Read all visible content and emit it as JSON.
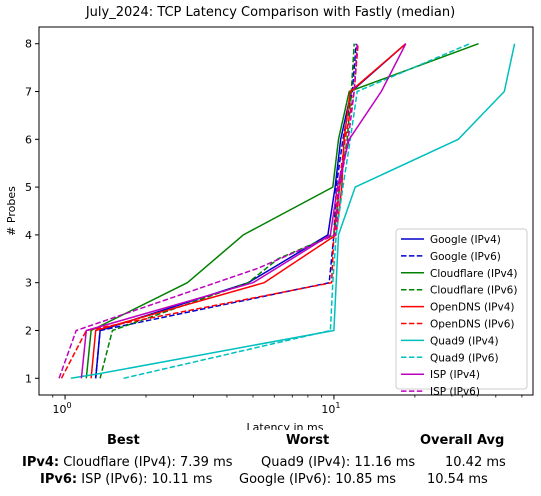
{
  "chart_data": {
    "type": "line",
    "title": "July_2024: TCP Latency Comparison with Fastly (median)",
    "xlabel": "Latency in ms",
    "ylabel": "# Probes",
    "xscale": "log",
    "xlim": [
      0.8,
      55
    ],
    "ylim": [
      0.65,
      8.35
    ],
    "xticks": [
      {
        "value": 1,
        "label": "10^0"
      },
      {
        "value": 10,
        "label": "10^1"
      }
    ],
    "yticks": [
      1,
      2,
      3,
      4,
      5,
      6,
      7,
      8
    ],
    "grid": false,
    "legend_position": "lower right",
    "series": [
      {
        "name": "Google (IPv4)",
        "color": "#0000cc",
        "style": "solid",
        "points": [
          [
            1.3,
            1
          ],
          [
            1.35,
            2
          ],
          [
            4.8,
            3
          ],
          [
            9.5,
            4
          ],
          [
            10.1,
            5
          ],
          [
            10.6,
            6
          ],
          [
            11.6,
            7
          ],
          [
            18.5,
            8
          ]
        ]
      },
      {
        "name": "Google (IPv6)",
        "color": "#0000cc",
        "style": "dashed",
        "points": [
          [
            1.3,
            1
          ],
          [
            1.35,
            2
          ],
          [
            9.6,
            3
          ],
          [
            10.0,
            4
          ],
          [
            10.2,
            5
          ],
          [
            10.8,
            6
          ],
          [
            11.7,
            7
          ],
          [
            12.1,
            8
          ]
        ]
      },
      {
        "name": "Cloudflare (IPv4)",
        "color": "#008000",
        "style": "solid",
        "points": [
          [
            1.2,
            1
          ],
          [
            1.25,
            2
          ],
          [
            2.85,
            3
          ],
          [
            4.6,
            4
          ],
          [
            9.9,
            5
          ],
          [
            10.4,
            6
          ],
          [
            11.4,
            7
          ],
          [
            34.5,
            8
          ]
        ]
      },
      {
        "name": "Cloudflare (IPv6)",
        "color": "#008000",
        "style": "dashed",
        "points": [
          [
            1.35,
            1
          ],
          [
            1.5,
            2
          ],
          [
            4.8,
            3
          ],
          [
            6.2,
            3.5
          ],
          [
            10.0,
            4
          ],
          [
            10.5,
            5
          ],
          [
            11.2,
            6
          ],
          [
            11.6,
            7
          ],
          [
            11.9,
            8
          ]
        ]
      },
      {
        "name": "OpenDNS (IPv4)",
        "color": "#ff0000",
        "style": "solid",
        "points": [
          [
            1.25,
            1
          ],
          [
            1.3,
            2
          ],
          [
            5.5,
            3
          ],
          [
            10.2,
            4
          ],
          [
            10.7,
            5
          ],
          [
            10.9,
            6
          ],
          [
            11.5,
            7
          ],
          [
            18.5,
            8
          ]
        ]
      },
      {
        "name": "OpenDNS (IPv6)",
        "color": "#ff0000",
        "style": "dashed",
        "points": [
          [
            0.97,
            1
          ],
          [
            1.2,
            2
          ],
          [
            9.8,
            3
          ],
          [
            10.0,
            4
          ],
          [
            10.4,
            5
          ],
          [
            11.0,
            6
          ],
          [
            11.9,
            7
          ],
          [
            12.3,
            8
          ]
        ]
      },
      {
        "name": "Quad9 (IPv4)",
        "color": "#00bfbf",
        "style": "solid",
        "points": [
          [
            1.05,
            1
          ],
          [
            1.35,
            1.1
          ],
          [
            10.0,
            2
          ],
          [
            10.2,
            3
          ],
          [
            10.4,
            4
          ],
          [
            12.0,
            5
          ],
          [
            29.0,
            6
          ],
          [
            43.0,
            7
          ],
          [
            47.0,
            8
          ]
        ]
      },
      {
        "name": "Quad9 (IPv6)",
        "color": "#00bfbf",
        "style": "dashed",
        "points": [
          [
            1.65,
            1
          ],
          [
            9.7,
            2
          ],
          [
            9.9,
            3
          ],
          [
            10.2,
            4
          ],
          [
            10.8,
            5
          ],
          [
            11.5,
            6
          ],
          [
            12.2,
            7
          ],
          [
            32.0,
            8
          ]
        ]
      },
      {
        "name": "ISP (IPv4)",
        "color": "#bf00bf",
        "style": "solid",
        "points": [
          [
            1.15,
            1
          ],
          [
            1.2,
            2
          ],
          [
            5.0,
            3
          ],
          [
            9.7,
            4
          ],
          [
            10.3,
            5
          ],
          [
            11.4,
            6
          ],
          [
            15.0,
            7
          ],
          [
            18.5,
            8
          ]
        ]
      },
      {
        "name": "ISP (IPv6)",
        "color": "#bf00bf",
        "style": "dashed",
        "points": [
          [
            0.95,
            1
          ],
          [
            1.1,
            2
          ],
          [
            5.2,
            3.3
          ],
          [
            10.1,
            4
          ],
          [
            10.5,
            5
          ],
          [
            11.3,
            6
          ],
          [
            11.9,
            7
          ],
          [
            12.2,
            8
          ]
        ]
      }
    ]
  },
  "summary": {
    "headers": {
      "best": "Best",
      "worst": "Worst",
      "avg": "Overall Avg"
    },
    "rows": [
      {
        "label": "IPv4:",
        "best": "Cloudflare (IPv4): 7.39 ms",
        "worst": "Quad9 (IPv4): 11.16 ms",
        "avg": "10.42 ms"
      },
      {
        "label": "IPv6:",
        "best": "ISP (IPv6): 10.11 ms",
        "worst": "Google (IPv6): 10.85 ms",
        "avg": "10.54 ms"
      }
    ]
  }
}
